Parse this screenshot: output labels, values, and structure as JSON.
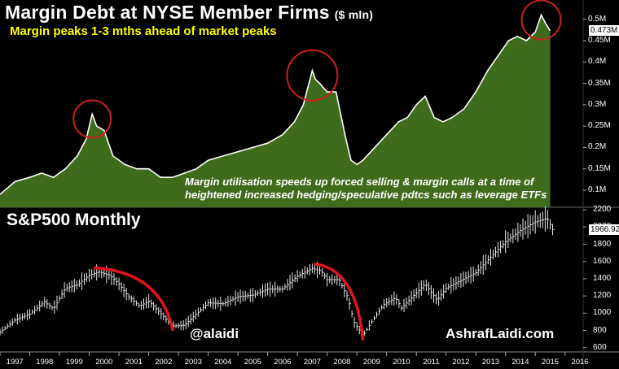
{
  "title": "Margin Debt at NYSE Member Firms",
  "title_unit": "($ mln)",
  "subtitle": "Margin peaks 1-3 mths ahead of market peaks",
  "annotation_line1": "Margin utilisation speeds up forced selling & margin calls at a time of",
  "annotation_line2": "heightened increased hedging/speculative pdtcs such as leverage ETFs",
  "lower_title": "S&P500 Monthly",
  "watermark_left": "@alaidi",
  "watermark_right": "AshrafLaidi.com",
  "colors": {
    "background": "#000000",
    "area_fill": "#3f6c1c",
    "title_text": "#ffffff",
    "subtitle_text": "#ffff00",
    "circle": "#cc1f1f",
    "decline_arc": "#e0151b"
  },
  "chart_data": [
    {
      "type": "area",
      "title": "Margin Debt at NYSE Member Firms ($ mln)",
      "ylim": [
        0.06,
        0.53
      ],
      "ytick_labels": [
        "0.1M",
        "0.15M",
        "0.2M",
        "0.25M",
        "0.3M",
        "0.35M",
        "0.4M",
        "0.45M",
        "0.5M"
      ],
      "yticks": [
        0.1,
        0.15,
        0.2,
        0.25,
        0.3,
        0.35,
        0.4,
        0.45,
        0.5
      ],
      "last_value_label": "0.473M",
      "last_value": 0.473,
      "x": [
        1997.0,
        1997.5,
        1998.0,
        1998.4,
        1998.8,
        1999.2,
        1999.6,
        1999.9,
        2000.1,
        2000.25,
        2000.5,
        2000.8,
        2001.2,
        2001.6,
        2002.0,
        2002.4,
        2002.8,
        2003.2,
        2003.6,
        2004.0,
        2004.5,
        2005.0,
        2005.5,
        2006.0,
        2006.5,
        2006.9,
        2007.2,
        2007.5,
        2007.6,
        2007.75,
        2008.0,
        2008.3,
        2008.6,
        2008.8,
        2009.0,
        2009.2,
        2009.6,
        2010.0,
        2010.4,
        2010.7,
        2011.0,
        2011.3,
        2011.6,
        2011.9,
        2012.2,
        2012.6,
        2013.0,
        2013.4,
        2013.8,
        2014.1,
        2014.4,
        2014.7,
        2015.0,
        2015.2,
        2015.35,
        2015.5
      ],
      "values": [
        0.09,
        0.12,
        0.13,
        0.14,
        0.13,
        0.15,
        0.18,
        0.22,
        0.278,
        0.25,
        0.24,
        0.18,
        0.16,
        0.15,
        0.15,
        0.13,
        0.13,
        0.14,
        0.15,
        0.17,
        0.18,
        0.19,
        0.2,
        0.21,
        0.23,
        0.26,
        0.3,
        0.38,
        0.36,
        0.35,
        0.33,
        0.33,
        0.23,
        0.17,
        0.16,
        0.17,
        0.2,
        0.23,
        0.26,
        0.27,
        0.3,
        0.32,
        0.27,
        0.26,
        0.27,
        0.29,
        0.33,
        0.38,
        0.42,
        0.45,
        0.46,
        0.45,
        0.47,
        0.51,
        0.49,
        0.473
      ],
      "highlighted_peaks_year": [
        2000.1,
        2007.5,
        2015.2
      ]
    },
    {
      "type": "line",
      "title": "S&P500 Monthly",
      "ylim": [
        550,
        2230
      ],
      "ytick_labels": [
        "600",
        "800",
        "1000",
        "1200",
        "1400",
        "1600",
        "1800",
        "2000",
        "2200"
      ],
      "yticks": [
        600,
        800,
        1000,
        1200,
        1400,
        1600,
        1800,
        2000,
        2200
      ],
      "last_value_label": "1966.92",
      "last_value": 1966.92,
      "x": [
        1997.0,
        1997.5,
        1998.0,
        1998.5,
        1998.8,
        1999.2,
        1999.6,
        2000.0,
        2000.3,
        2000.7,
        2001.0,
        2001.3,
        2001.7,
        2002.0,
        2002.4,
        2002.8,
        2003.2,
        2003.6,
        2004.0,
        2004.5,
        2005.0,
        2005.5,
        2006.0,
        2006.5,
        2007.0,
        2007.5,
        2007.8,
        2008.0,
        2008.4,
        2008.7,
        2008.9,
        2009.2,
        2009.5,
        2009.9,
        2010.3,
        2010.5,
        2010.9,
        2011.3,
        2011.7,
        2012.0,
        2012.5,
        2013.0,
        2013.5,
        2014.0,
        2014.5,
        2015.0,
        2015.4,
        2015.6
      ],
      "values": [
        780,
        920,
        990,
        1130,
        1050,
        1290,
        1330,
        1440,
        1480,
        1440,
        1340,
        1200,
        1080,
        1140,
        1000,
        850,
        860,
        990,
        1120,
        1110,
        1190,
        1210,
        1280,
        1280,
        1430,
        1520,
        1490,
        1390,
        1390,
        1180,
        900,
        740,
        900,
        1100,
        1180,
        1060,
        1200,
        1340,
        1150,
        1290,
        1380,
        1470,
        1650,
        1830,
        1960,
        2060,
        2100,
        1960
      ],
      "decline_arcs": [
        [
          2000.2,
          2002.8
        ],
        [
          2007.6,
          2009.2
        ]
      ],
      "xtick_labels": [
        "1997",
        "1998",
        "1999",
        "2000",
        "2001",
        "2002",
        "2003",
        "2004",
        "2005",
        "2006",
        "2007",
        "2008",
        "2009",
        "2010",
        "2011",
        "2012",
        "2013",
        "2014",
        "2015",
        "2016"
      ]
    }
  ]
}
